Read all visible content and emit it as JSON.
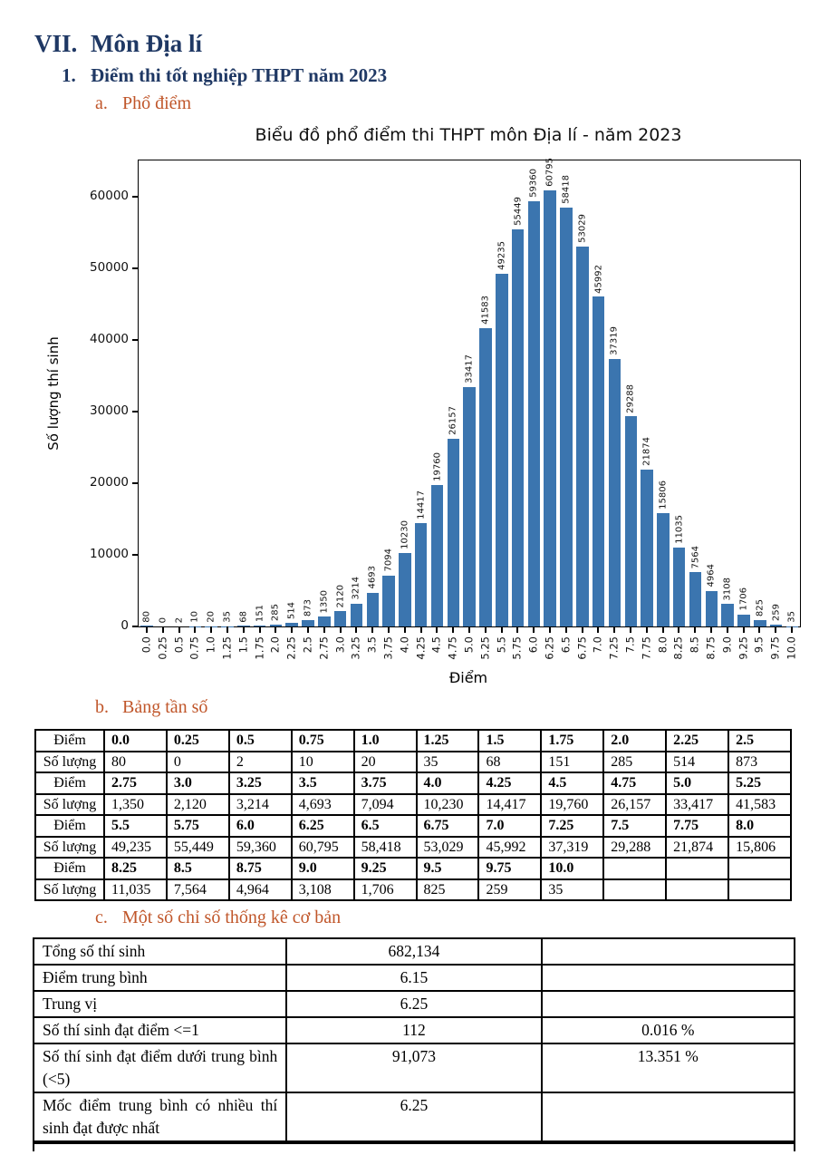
{
  "colors": {
    "heading_navy": "#1f3864",
    "heading_orange": "#c0562a",
    "bar_blue": "#3b75af"
  },
  "headings": {
    "section_number": "VII.",
    "section_title": "Môn Địa lí",
    "sub_number": "1.",
    "sub_title": "Điểm thi tốt nghiệp THPT năm 2023",
    "a_number": "a.",
    "a_title": "Phổ điểm",
    "b_number": "b.",
    "b_title": "Bảng tần số",
    "c_number": "c.",
    "c_title": "Một số chỉ số thống kê cơ bản"
  },
  "chart_data": {
    "type": "bar",
    "title": "Biểu đồ phổ điểm thi THPT môn Địa lí - năm 2023",
    "xlabel": "Điểm",
    "ylabel": "Số lượng thí sinh",
    "categories": [
      "0.0",
      "0.25",
      "0.5",
      "0.75",
      "1.0",
      "1.25",
      "1.5",
      "1.75",
      "2.0",
      "2.25",
      "2.5",
      "2.75",
      "3.0",
      "3.25",
      "3.5",
      "3.75",
      "4.0",
      "4.25",
      "4.5",
      "4.75",
      "5.0",
      "5.25",
      "5.5",
      "5.75",
      "6.0",
      "6.25",
      "6.5",
      "6.75",
      "7.0",
      "7.25",
      "7.5",
      "7.75",
      "8.0",
      "8.25",
      "8.5",
      "8.75",
      "9.0",
      "9.25",
      "9.5",
      "9.75",
      "10.0"
    ],
    "values": [
      80,
      0,
      2,
      10,
      20,
      35,
      68,
      151,
      285,
      514,
      873,
      1350,
      2120,
      3214,
      4693,
      7094,
      10230,
      14417,
      19760,
      26157,
      33417,
      41583,
      49235,
      55449,
      59360,
      60795,
      58418,
      53029,
      45992,
      37319,
      29288,
      21874,
      15806,
      11035,
      7564,
      4964,
      3108,
      1706,
      825,
      259,
      35
    ],
    "ylim": [
      0,
      65000
    ],
    "yticks": [
      0,
      10000,
      20000,
      30000,
      40000,
      50000,
      60000
    ],
    "grid": false,
    "bar_color": "#3b75af"
  },
  "freq_table": {
    "row_labels": {
      "diem": "Điểm",
      "so_luong": "Số lượng"
    },
    "pairs": [
      {
        "diem": [
          "0.0",
          "0.25",
          "0.5",
          "0.75",
          "1.0",
          "1.25",
          "1.5",
          "1.75",
          "2.0",
          "2.25",
          "2.5"
        ],
        "so_luong": [
          "80",
          "0",
          "2",
          "10",
          "20",
          "35",
          "68",
          "151",
          "285",
          "514",
          "873"
        ]
      },
      {
        "diem": [
          "2.75",
          "3.0",
          "3.25",
          "3.5",
          "3.75",
          "4.0",
          "4.25",
          "4.5",
          "4.75",
          "5.0",
          "5.25"
        ],
        "so_luong": [
          "1,350",
          "2,120",
          "3,214",
          "4,693",
          "7,094",
          "10,230",
          "14,417",
          "19,760",
          "26,157",
          "33,417",
          "41,583"
        ]
      },
      {
        "diem": [
          "5.5",
          "5.75",
          "6.0",
          "6.25",
          "6.5",
          "6.75",
          "7.0",
          "7.25",
          "7.5",
          "7.75",
          "8.0"
        ],
        "so_luong": [
          "49,235",
          "55,449",
          "59,360",
          "60,795",
          "58,418",
          "53,029",
          "45,992",
          "37,319",
          "29,288",
          "21,874",
          "15,806"
        ]
      },
      {
        "diem": [
          "8.25",
          "8.5",
          "8.75",
          "9.0",
          "9.25",
          "9.5",
          "9.75",
          "10.0",
          "",
          "",
          ""
        ],
        "so_luong": [
          "11,035",
          "7,564",
          "4,964",
          "3,108",
          "1,706",
          "825",
          "259",
          "35",
          "",
          "",
          ""
        ]
      }
    ]
  },
  "stats_table": {
    "rows": [
      {
        "label": "Tổng số thí sinh",
        "value": "682,134",
        "percent": ""
      },
      {
        "label": "Điểm trung bình",
        "value": "6.15",
        "percent": ""
      },
      {
        "label": "Trung vị",
        "value": "6.25",
        "percent": ""
      },
      {
        "label": "Số thí sinh đạt điểm <=1",
        "value": "112",
        "percent": "0.016 %"
      },
      {
        "label": "Số thí sinh đạt điểm dưới trung bình (<5)",
        "value": "91,073",
        "percent": "13.351 %"
      },
      {
        "label": "Mốc điểm trung bình có nhiều thí sinh đạt được nhất",
        "value": "6.25",
        "percent": ""
      }
    ]
  }
}
